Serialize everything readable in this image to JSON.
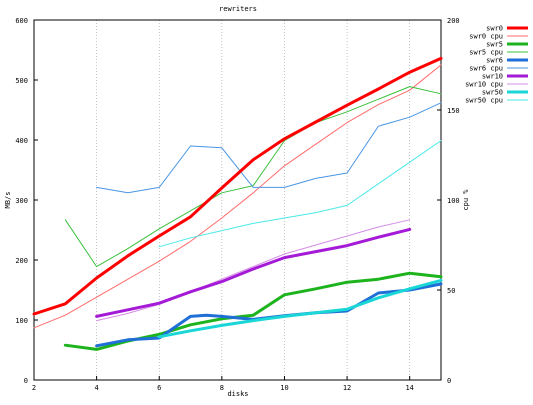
{
  "chart_data": {
    "type": "line",
    "title": "rewriters",
    "xlabel": "disks",
    "ylabel": "MB/s",
    "y2label": "cpu %",
    "xlim": [
      2,
      15
    ],
    "ylim": [
      0,
      600
    ],
    "y2lim": [
      0,
      200
    ],
    "x_ticks": [
      2,
      4,
      6,
      8,
      10,
      12,
      14
    ],
    "y_ticks": [
      0,
      100,
      200,
      300,
      400,
      500,
      600
    ],
    "y2_ticks": [
      0,
      50,
      100,
      150,
      200
    ],
    "grid": "vertical dashed at x ticks",
    "legend_position": "top-right",
    "series": [
      {
        "name": "swr0",
        "axis": "y",
        "color": "#ff0000",
        "width": 3,
        "x": [
          2,
          3,
          4,
          5,
          6,
          7,
          8,
          9,
          10,
          11,
          12,
          13,
          14,
          15
        ],
        "y": [
          110,
          127,
          170,
          207,
          240,
          272,
          320,
          367,
          402,
          430,
          458,
          485,
          513,
          536
        ]
      },
      {
        "name": "swr0 cpu",
        "axis": "y2",
        "color": "#ff6b6b",
        "width": 1,
        "x": [
          2,
          3,
          4,
          5,
          6,
          7,
          8,
          9,
          10,
          11,
          12,
          13,
          14,
          15
        ],
        "y": [
          29,
          36,
          46,
          56,
          66,
          77,
          90,
          104,
          119,
          131,
          143,
          153,
          161,
          175
        ]
      },
      {
        "name": "swr5",
        "axis": "y",
        "color": "#1db31d",
        "width": 3,
        "x": [
          3,
          4,
          5,
          6,
          7,
          8,
          9,
          10,
          11,
          12,
          13,
          14,
          15
        ],
        "y": [
          58,
          51,
          65,
          76,
          92,
          102,
          108,
          142,
          152,
          163,
          168,
          178,
          172
        ]
      },
      {
        "name": "swr5 cpu",
        "axis": "y2",
        "color": "#3cc03c",
        "width": 1,
        "x": [
          3,
          4,
          5,
          6,
          7,
          8,
          9,
          10,
          11,
          12,
          13,
          14,
          15
        ],
        "y": [
          89,
          63,
          73,
          84,
          94,
          104,
          108,
          133,
          143,
          149,
          156,
          163,
          159
        ]
      },
      {
        "name": "swr6",
        "axis": "y",
        "color": "#1f6fd6",
        "width": 3,
        "x": [
          4,
          5,
          6,
          7,
          7.5,
          8,
          9,
          10,
          11,
          12,
          13,
          14,
          15
        ],
        "y": [
          57,
          67,
          70,
          106,
          108,
          106,
          101,
          107,
          112,
          115,
          145,
          150,
          160
        ]
      },
      {
        "name": "swr6 cpu",
        "axis": "y2",
        "color": "#4a96e6",
        "width": 1,
        "x": [
          4,
          5,
          6,
          7,
          8,
          9,
          10,
          11,
          12,
          13,
          14,
          15
        ],
        "y": [
          107,
          104,
          107,
          130,
          129,
          107,
          107,
          112,
          115,
          141,
          146,
          154
        ]
      },
      {
        "name": "swr10",
        "axis": "y",
        "color": "#a51ad6",
        "width": 3,
        "x": [
          4,
          5,
          6,
          7,
          8,
          9,
          10,
          11,
          12,
          13,
          14
        ],
        "y": [
          106,
          117,
          128,
          147,
          164,
          185,
          204,
          214,
          224,
          238,
          251
        ]
      },
      {
        "name": "swr10 cpu",
        "axis": "y2",
        "color": "#d58ce6",
        "width": 1,
        "x": [
          4,
          5,
          6,
          7,
          8,
          9,
          10,
          11,
          12,
          13,
          14
        ],
        "y": [
          33,
          37,
          42,
          49,
          56,
          63,
          70,
          75,
          80,
          85,
          89
        ]
      },
      {
        "name": "swr50",
        "axis": "y",
        "color": "#1ad6d6",
        "width": 3,
        "x": [
          6,
          7,
          8,
          9,
          10,
          11,
          12,
          13,
          14,
          15
        ],
        "y": [
          72,
          82,
          91,
          99,
          106,
          112,
          118,
          137,
          152,
          166
        ]
      },
      {
        "name": "swr50 cpu",
        "axis": "y2",
        "color": "#4ae8e8",
        "width": 1,
        "x": [
          6,
          7,
          8,
          9,
          10,
          11,
          12,
          13,
          14,
          15
        ],
        "y": [
          74,
          79,
          83,
          87,
          90,
          93,
          97,
          109,
          121,
          133
        ]
      }
    ]
  }
}
